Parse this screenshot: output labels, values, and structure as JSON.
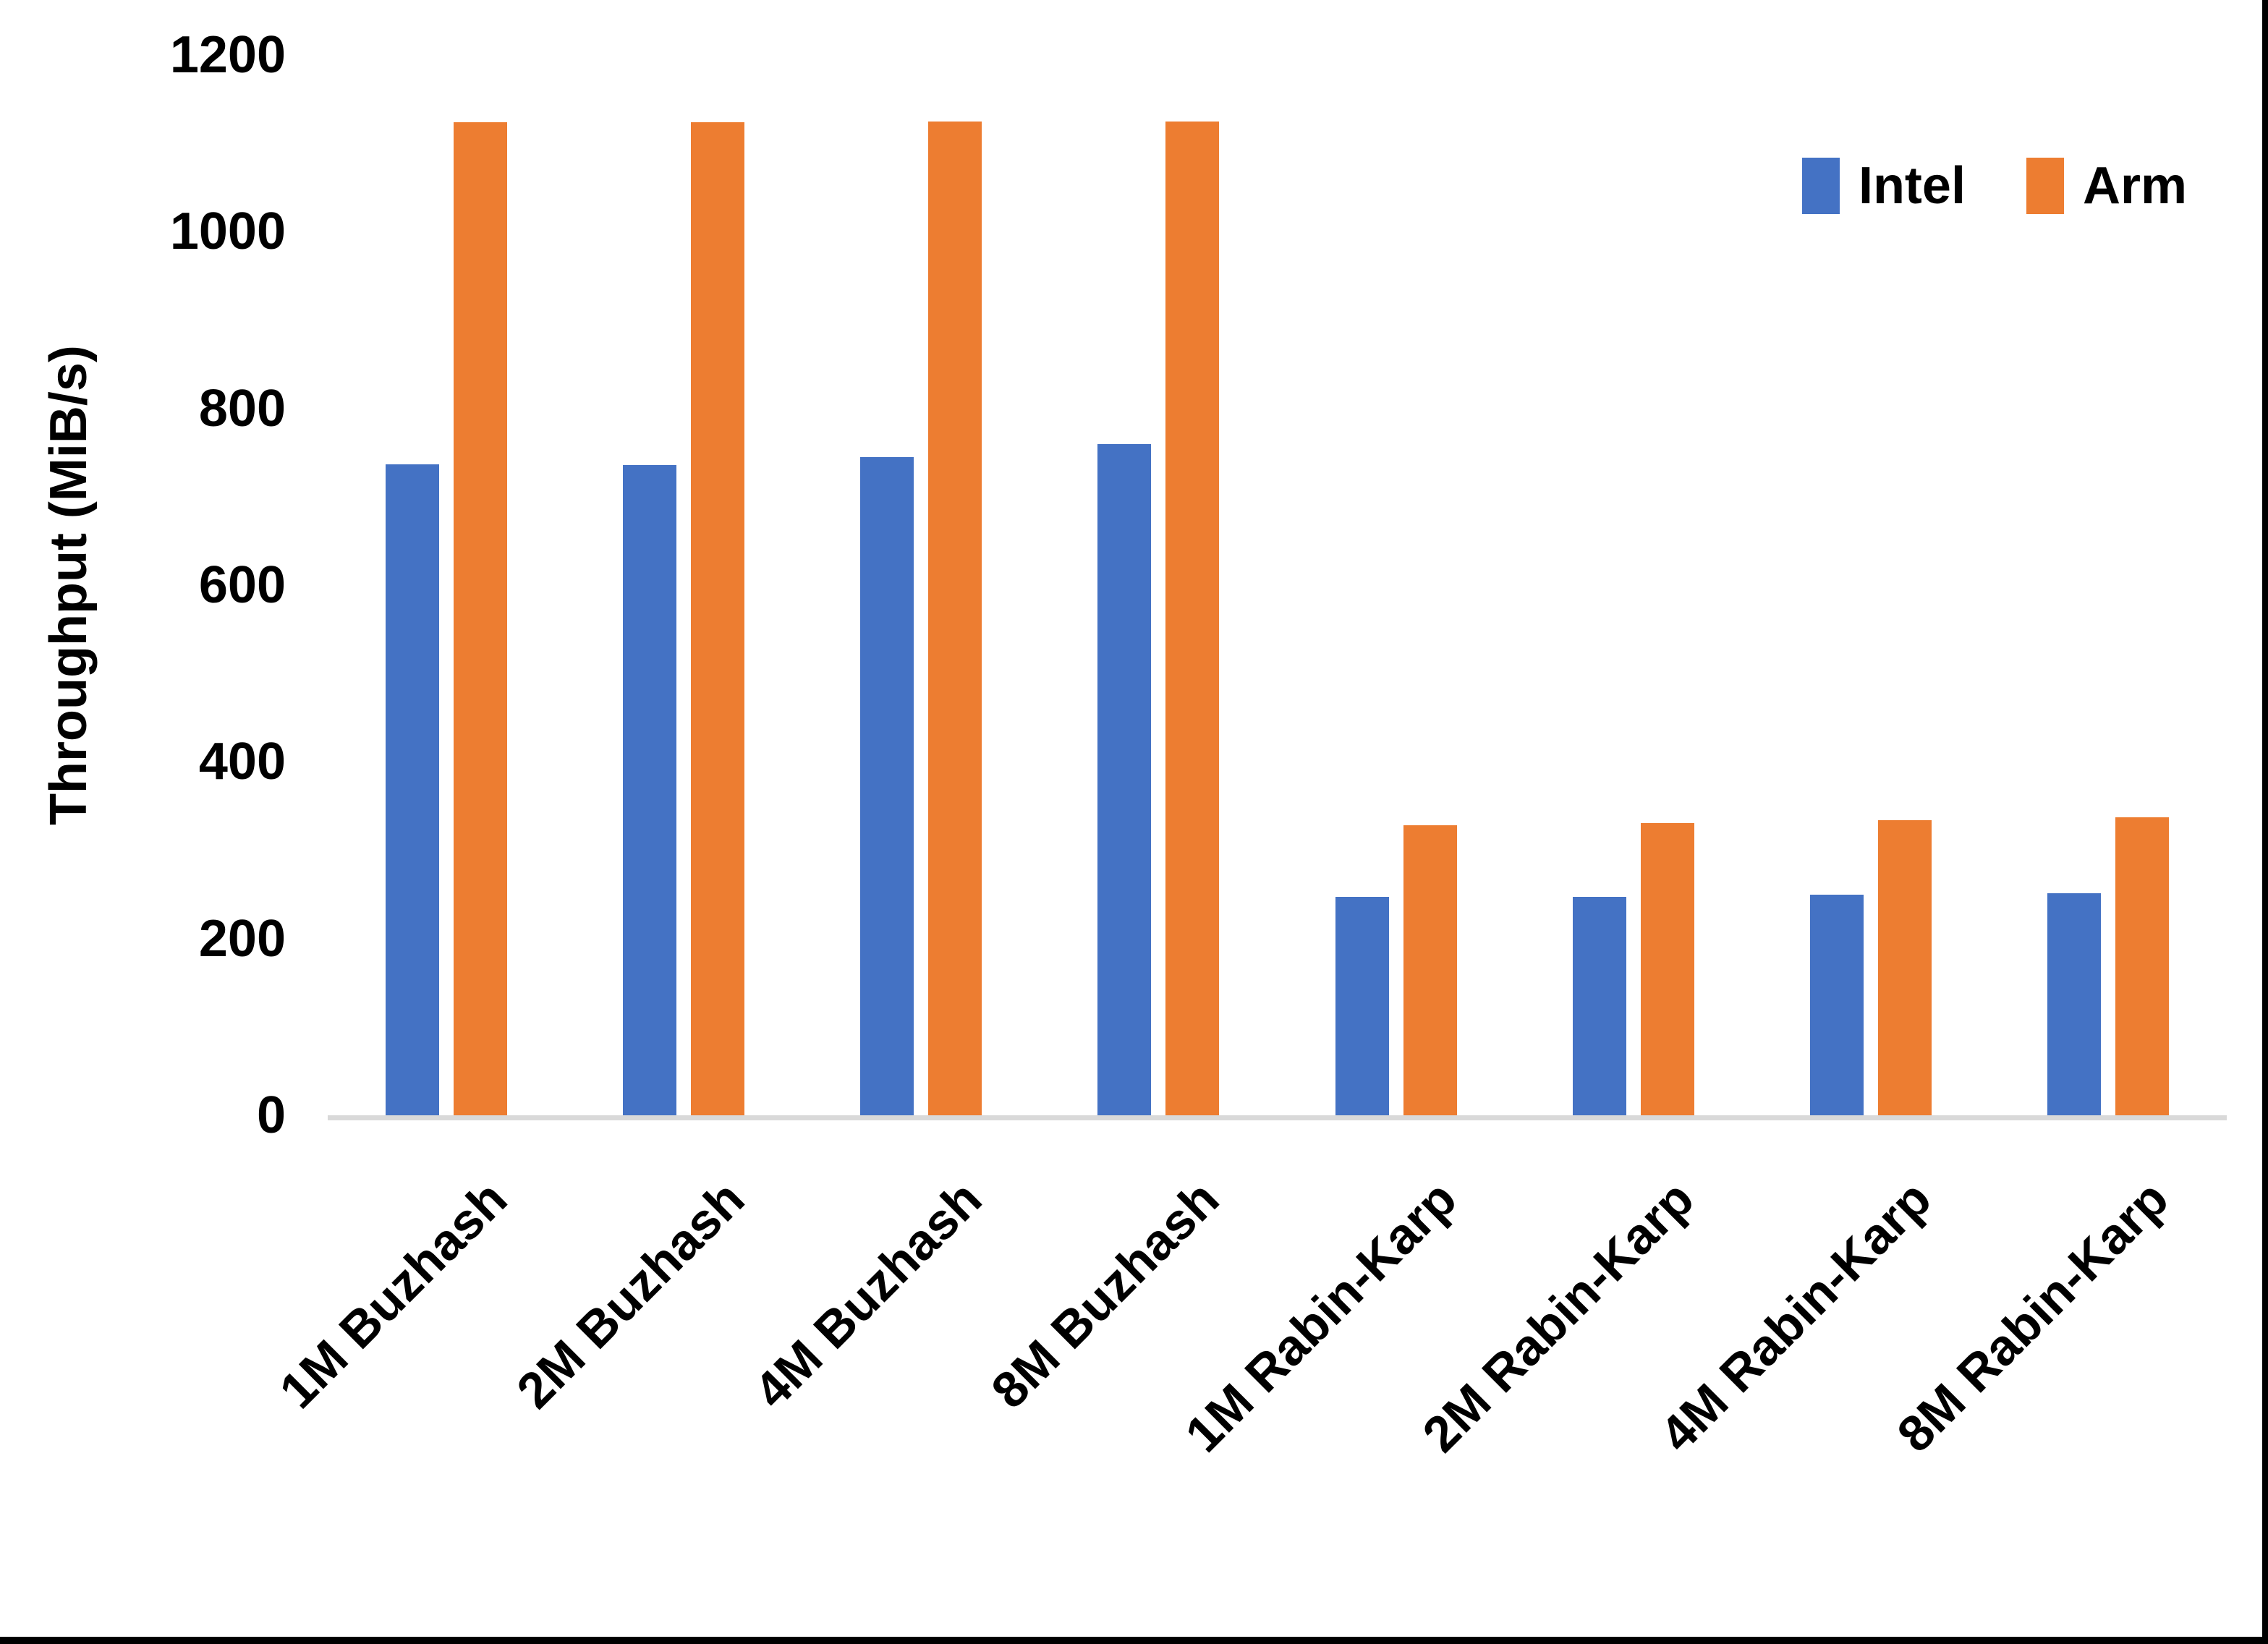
{
  "chart_data": {
    "type": "bar",
    "title": "",
    "xlabel": "",
    "ylabel": "Throughput (MiB/s)",
    "ylim": [
      0,
      1200
    ],
    "yticks": [
      0,
      200,
      400,
      600,
      800,
      1000,
      1200
    ],
    "grid": false,
    "legend_position": "top-right",
    "categories": [
      "1M Buzhash",
      "2M Buzhash",
      "4M Buzhash",
      "8M Buzhash",
      "1M Rabin-Karp",
      "2M Rabin-Karp",
      "4M Rabin-Karp",
      "8M Rabin-Karp"
    ],
    "series": [
      {
        "name": "Intel",
        "color": "#4472C4",
        "values": [
          737,
          736,
          745,
          760,
          247,
          247,
          250,
          251
        ]
      },
      {
        "name": "Arm",
        "color": "#ED7D31",
        "values": [
          1124,
          1124,
          1125,
          1125,
          328,
          331,
          334,
          337
        ]
      }
    ],
    "axis_line_color": "#D9D9D9",
    "text_color": "#000000"
  }
}
